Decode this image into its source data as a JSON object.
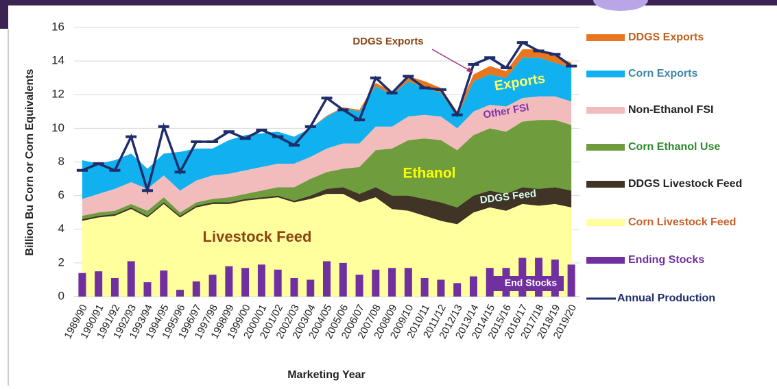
{
  "chart_data": {
    "type": "area",
    "y_label": "Billion Bu Corn or Corn Equivalents",
    "x_label": "Marketing Year",
    "categories": [
      "1989/90",
      "1990/91",
      "1991/92",
      "1992/93",
      "1993/94",
      "1994/95",
      "1995/96",
      "1996/97",
      "1997/98",
      "1998/99",
      "1999/00",
      "2000/01",
      "2001/02",
      "2002/03",
      "2003/04",
      "2004/05",
      "2005/06",
      "2006/07",
      "2007/08",
      "2008/09",
      "2009/10",
      "2010/11",
      "2011/12",
      "2012/13",
      "2013/14",
      "2014/15",
      "2015/16",
      "2016/17",
      "2017/18",
      "2018/19",
      "2019/20"
    ],
    "ylim": [
      0,
      16
    ],
    "yticks": [
      0,
      2,
      4,
      6,
      8,
      10,
      12,
      14,
      16
    ],
    "grid": true,
    "stacked": true,
    "legend": "right",
    "series": [
      {
        "name": "DDGS Exports",
        "type": "area",
        "color": "#e8761e",
        "values": [
          0,
          0,
          0,
          0,
          0,
          0,
          0,
          0,
          0,
          0,
          0,
          0,
          0,
          0,
          0,
          0.05,
          0.05,
          0.1,
          0.2,
          0.2,
          0.3,
          0.4,
          0.3,
          0.3,
          0.4,
          0.5,
          0.4,
          0.5,
          0.5,
          0.4,
          0.3
        ]
      },
      {
        "name": "Corn Exports",
        "type": "area",
        "color": "#11b0ee",
        "values": [
          2.3,
          1.8,
          1.7,
          1.7,
          1.2,
          1.3,
          2.3,
          1.9,
          1.6,
          2.0,
          2.1,
          2.0,
          1.9,
          1.6,
          1.7,
          1.9,
          2.1,
          1.9,
          2.4,
          1.9,
          2.1,
          1.6,
          1.4,
          0.7,
          1.8,
          1.8,
          1.7,
          2.4,
          2.3,
          2.0,
          2.0
        ]
      },
      {
        "name": "Non-Ethanol FSI",
        "type": "area",
        "color": "#f2bcbc",
        "values": [
          1.0,
          1.1,
          1.3,
          1.3,
          1.3,
          1.3,
          1.3,
          1.3,
          1.4,
          1.4,
          1.4,
          1.4,
          1.4,
          1.4,
          1.3,
          1.4,
          1.5,
          1.4,
          1.4,
          1.3,
          1.4,
          1.4,
          1.4,
          1.3,
          1.4,
          1.4,
          1.5,
          1.4,
          1.4,
          1.4,
          1.4
        ]
      },
      {
        "name": "Corn Ethanol Use",
        "type": "area",
        "color": "#6f9c3d",
        "values": [
          0.2,
          0.2,
          0.2,
          0.2,
          0.3,
          0.3,
          0.2,
          0.2,
          0.2,
          0.3,
          0.3,
          0.4,
          0.5,
          0.8,
          1.0,
          1.0,
          1.1,
          1.6,
          2.2,
          2.8,
          3.3,
          3.6,
          3.7,
          3.4,
          3.6,
          3.7,
          3.7,
          3.9,
          4.1,
          4.0,
          3.9
        ]
      },
      {
        "name": "DDGS Livestock Feed",
        "type": "area",
        "color": "#3f3425",
        "values": [
          0.1,
          0.1,
          0.1,
          0.1,
          0.1,
          0.1,
          0.1,
          0.1,
          0.1,
          0.1,
          0.1,
          0.1,
          0.1,
          0.1,
          0.2,
          0.3,
          0.4,
          0.5,
          0.6,
          0.8,
          0.9,
          1.0,
          1.1,
          1.0,
          1.0,
          1.0,
          1.0,
          1.0,
          1.0,
          1.0,
          1.0
        ]
      },
      {
        "name": "Corn Livestock Feed",
        "type": "area",
        "color": "#ffff9e",
        "values": [
          4.5,
          4.7,
          4.8,
          5.2,
          4.7,
          5.5,
          4.7,
          5.3,
          5.5,
          5.5,
          5.7,
          5.8,
          5.9,
          5.6,
          5.8,
          6.1,
          6.1,
          5.6,
          5.9,
          5.2,
          5.1,
          4.8,
          4.5,
          4.3,
          5.0,
          5.3,
          5.1,
          5.5,
          5.4,
          5.5,
          5.3
        ]
      },
      {
        "name": "Ending Stocks",
        "type": "bar",
        "color": "#7030a0",
        "values": [
          1.4,
          1.5,
          1.1,
          2.1,
          0.85,
          1.55,
          0.4,
          0.9,
          1.3,
          1.8,
          1.7,
          1.9,
          1.6,
          1.1,
          1.0,
          2.1,
          2.0,
          1.3,
          1.6,
          1.7,
          1.7,
          1.1,
          1.0,
          0.8,
          1.2,
          1.7,
          1.7,
          2.3,
          2.3,
          2.2,
          1.9
        ]
      },
      {
        "name": "Annual Production",
        "type": "line",
        "color": "#1f2d6b",
        "values": [
          7.5,
          7.9,
          7.5,
          9.5,
          6.3,
          10.1,
          7.4,
          9.2,
          9.2,
          9.8,
          9.4,
          9.9,
          9.5,
          9.0,
          10.1,
          11.8,
          11.1,
          10.5,
          13.0,
          12.1,
          13.1,
          12.4,
          12.3,
          10.8,
          13.8,
          14.2,
          13.6,
          15.1,
          14.6,
          14.4,
          13.7
        ]
      }
    ],
    "annotations": [
      "DDGS Exports",
      "Exports",
      "Other FSI",
      "Ethanol",
      "DDGS Feed",
      "Livestock Feed",
      "End Stocks"
    ]
  }
}
